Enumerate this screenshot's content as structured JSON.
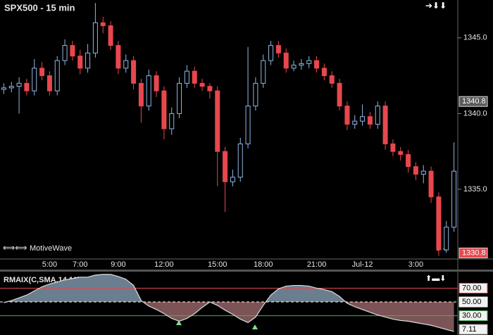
{
  "chart_data": [
    {
      "type": "candlestick",
      "title": "SPX500 - 15 min",
      "footer": "MotiveWave",
      "categories": [
        null,
        null,
        null,
        null,
        null,
        null,
        "5:00",
        null,
        null,
        null,
        "7:00",
        null,
        null,
        null,
        null,
        "9:00",
        null,
        null,
        null,
        null,
        null,
        "12:00",
        null,
        null,
        null,
        null,
        null,
        null,
        "15:00",
        null,
        null,
        null,
        null,
        null,
        "18:00",
        null,
        null,
        null,
        null,
        null,
        null,
        "21:00",
        null,
        null,
        null,
        null,
        null,
        "Jul-12",
        null,
        null,
        null,
        null,
        null,
        null,
        "3:00",
        null,
        null,
        null,
        null,
        null
      ],
      "open": [
        1341.6,
        1341.7,
        1341.8,
        1342.0,
        1341.5,
        1343.0,
        1342.5,
        1341.5,
        1343.5,
        1344.5,
        1343.8,
        1343.0,
        1344.0,
        1346.0,
        1345.8,
        1344.5,
        1343.0,
        1343.5,
        1342.0,
        1340.5,
        1342.5,
        1341.5,
        1339.0,
        1340.0,
        1342.0,
        1342.8,
        1342.0,
        1341.8,
        1341.5,
        1337.5,
        1335.5,
        1335.8,
        1338.0,
        1340.5,
        1342.0,
        1343.5,
        1344.5,
        1344.0,
        1343.0,
        1343.2,
        1343.3,
        1343.5,
        1343.0,
        1342.5,
        1342.0,
        1340.5,
        1339.3,
        1339.5,
        1339.8,
        1339.3,
        1340.5,
        1338.0,
        1337.5,
        1337.3,
        1336.5,
        1336.0,
        1336.2,
        1334.5,
        1331.0,
        1332.5
      ],
      "high": [
        1342.0,
        1342.1,
        1342.4,
        1342.3,
        1343.6,
        1343.4,
        1342.8,
        1343.8,
        1344.9,
        1344.8,
        1344.2,
        1344.6,
        1347.3,
        1346.4,
        1346.1,
        1344.8,
        1343.9,
        1343.8,
        1342.3,
        1342.9,
        1342.8,
        1341.8,
        1340.4,
        1342.4,
        1343.2,
        1343.1,
        1342.3,
        1342.0,
        1341.8,
        1337.8,
        1336.3,
        1338.4,
        1344.4,
        1342.4,
        1343.9,
        1344.8,
        1344.8,
        1344.3,
        1343.5,
        1343.6,
        1343.8,
        1343.8,
        1343.3,
        1342.8,
        1342.3,
        1340.8,
        1339.9,
        1340.6,
        1340.1,
        1340.8,
        1340.8,
        1338.3,
        1337.8,
        1337.6,
        1336.8,
        1336.6,
        1336.5,
        1334.8,
        1332.9,
        1338.1
      ],
      "low": [
        1341.3,
        1341.4,
        1340.0,
        1341.2,
        1341.2,
        1342.2,
        1341.2,
        1341.2,
        1343.2,
        1343.5,
        1342.6,
        1342.7,
        1343.7,
        1345.3,
        1344.2,
        1342.6,
        1342.7,
        1341.6,
        1339.4,
        1340.2,
        1341.1,
        1338.3,
        1338.6,
        1339.7,
        1341.7,
        1341.7,
        1341.5,
        1341.0,
        1335.2,
        1333.5,
        1335.2,
        1335.5,
        1337.7,
        1340.2,
        1341.7,
        1343.2,
        1343.7,
        1342.7,
        1342.8,
        1342.9,
        1343.0,
        1342.7,
        1342.2,
        1341.7,
        1340.2,
        1338.9,
        1339.0,
        1339.2,
        1339.0,
        1339.0,
        1337.6,
        1337.2,
        1336.9,
        1336.1,
        1335.6,
        1335.4,
        1334.1,
        1330.6,
        1330.8,
        1332.2
      ],
      "close": [
        1341.7,
        1341.8,
        1342.0,
        1341.5,
        1343.0,
        1342.5,
        1341.5,
        1343.5,
        1344.5,
        1343.8,
        1343.0,
        1344.0,
        1346.0,
        1345.8,
        1344.5,
        1343.0,
        1343.5,
        1342.0,
        1340.5,
        1342.5,
        1341.5,
        1339.0,
        1340.0,
        1342.0,
        1342.8,
        1342.0,
        1341.8,
        1341.5,
        1337.5,
        1335.5,
        1335.8,
        1338.0,
        1340.5,
        1342.0,
        1343.5,
        1344.5,
        1344.0,
        1343.0,
        1343.2,
        1343.3,
        1343.5,
        1343.0,
        1342.5,
        1342.0,
        1340.5,
        1339.3,
        1339.5,
        1339.8,
        1339.3,
        1340.5,
        1338.0,
        1337.5,
        1337.3,
        1336.5,
        1336.0,
        1336.2,
        1334.5,
        1331.0,
        1332.5,
        1336.2
      ],
      "up_color": "#8fb8e6",
      "down_color": "#e8474e",
      "ylim": [
        1330.4,
        1347.5
      ],
      "yticks": [
        {
          "value": 1335,
          "label": "1335.0"
        },
        {
          "value": 1340,
          "label": "1340.0"
        },
        {
          "value": 1345,
          "label": "1345.0"
        }
      ],
      "price_tags": [
        1340.8,
        1330.8
      ],
      "price_tag_colors": [
        "#5a5a5a",
        "#e8474e"
      ]
    },
    {
      "type": "oscillator",
      "title": "RMAIX(C,SMA,14,10)",
      "values": [
        49,
        52,
        56,
        60,
        66,
        72,
        76,
        79,
        82,
        84,
        86,
        86,
        89,
        90,
        90,
        87,
        83,
        74,
        52,
        44,
        39,
        33,
        26,
        22,
        26,
        33,
        42,
        50,
        45,
        38,
        32,
        25,
        20,
        28,
        45,
        60,
        69,
        73,
        74,
        74,
        73,
        70,
        68,
        65,
        58,
        48,
        43,
        39,
        35,
        31,
        28,
        25,
        23,
        22,
        20,
        18,
        16,
        13,
        10,
        7.11
      ],
      "color": "#dddddd",
      "fill_above": "#6b7e90",
      "fill_below": "#7c5457",
      "ylim": [
        4,
        94
      ],
      "yticks": [
        {
          "value": 30,
          "label": "30.00"
        },
        {
          "value": 50,
          "label": "50.00"
        },
        {
          "value": 70,
          "label": "70.00"
        }
      ],
      "ytick_colors": [
        "#3fb55a",
        "#ffffff",
        "#e0474c"
      ]
    }
  ]
}
